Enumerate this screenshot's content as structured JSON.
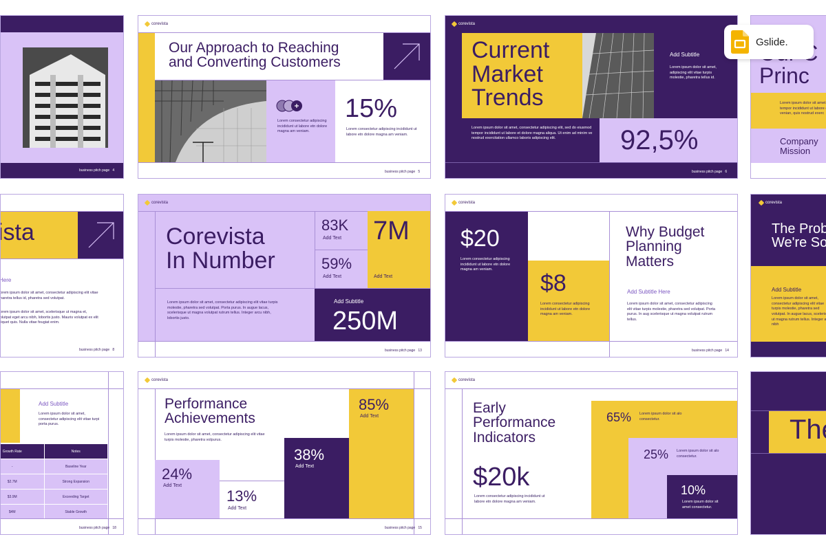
{
  "badge": {
    "label": "Gslide."
  },
  "brand": "corevista",
  "colors": {
    "purple": "#3b1d63",
    "lilac": "#d9c2f7",
    "yellow": "#f2c938"
  },
  "s1": {
    "footer": "business pitch page",
    "page": "4"
  },
  "s2": {
    "title_l1": "Our Approach to Reaching",
    "title_l2": "and Converting Customers",
    "body": "Lorem consectetur adipiscing incididunt ut labore etn dolore magna am veniam.",
    "stat": "15%",
    "stat_body": "Lorem consectetur adipiscing incididunt ut labore etn dolore magna am veniam.",
    "footer": "business pitch page",
    "page": "5"
  },
  "s3": {
    "title_l1": "Current",
    "title_l2": "Market",
    "title_l3": "Trends",
    "subtitle": "Add Subtitle",
    "sub_body": "Lorem ipsum dolor sit amet, adipiscing elit vitae turpis molestie, pharetra tellus id.",
    "body": "Lorem ipsum dolor sit amet, consectetur adipiscing elit, sed do eiusmod tempor incididunt ut labore et dolore magna aliqua. Ut enim ad minim ve nostrud exercitation ullamco laboris adipiscing elit.",
    "stat": "92,5%",
    "footer": "business pitch page",
    "page": "6"
  },
  "s4": {
    "title_l1": "Our C",
    "title_l2": "Princ",
    "body": "Lorem ipsum dolor sit amet, tempor incididunt ut labore et venian, quis nostrud exerc",
    "mission_l1": "Company",
    "mission_l2": "Mission"
  },
  "s5": {
    "title": "ista",
    "sub": "Here",
    "body1": "Lorem ipsum dolor sit amet, consectetur adipiscing elit vitae pharetra tellus id, pharetra sed volutpat.",
    "body2": "Lorem ipsum dolor sit amet, scelerisque ut magna et, volutpat eget arcu nibh, lobortis justo. Mauris volutpat ex elit aliquet quis. Nulla vitae feugiat enim.",
    "footer": "business pitch page",
    "page": "8"
  },
  "s6": {
    "title_l1": "Corevista",
    "title_l2": "In Number",
    "stat1": "83K",
    "stat1_label": "Add Text",
    "stat2": "59%",
    "stat2_label": "Add Text",
    "stat3": "7M",
    "stat3_label": "Add Text",
    "body": "Lorem ipsum dolor sit amet, consectetur adipiscing elit vitae turpis molestie, pharetra sed volutpat. Porta purus. In augue lacus, scelerisque ut magna volutpat rutrum tellus. Integer arcu nibh, lobortis justo.",
    "subtitle": "Add Subtitle",
    "stat4": "250M",
    "footer": "business pitch page",
    "page": "13"
  },
  "s7": {
    "stat1": "$20",
    "stat1_body": "Lorem consectetur adipiscing incididunt ut labore etn dolore magna am veniam.",
    "stat2": "$8",
    "stat2_body": "Lorem consectetur adipiscing incididunt ut labore etn dolore magna am veniam.",
    "title_l1": "Why Budget",
    "title_l2": "Planning",
    "title_l3": "Matters",
    "subtitle": "Add Subtitle Here",
    "body": "Lorem ipsum dolor sit amet, consectetur adipiscing elit vitae turpis molestie, pharetra sed volutpat. Porta purus. In aug scelerisque ut magna volutpat rutrum tellus.",
    "footer": "business pitch page",
    "page": "14"
  },
  "s8": {
    "title_l1": "The Prob",
    "title_l2": "We're So",
    "subtitle": "Add Subtitle",
    "body": "Lorem ipsum dolor sit amet, consectetur adipiscing elit vitae turpis molestie, pharetra sed volutpat. In augue lacus, scelerisque ut magna rutrum tellus. Integer arcu nibh"
  },
  "s9": {
    "subtitle": "Add Subtitle",
    "body": "Lorem ipsum dolor sit amet, consectetur adipiscing elit vitae turpi porta purus.",
    "columns": [
      "Growth Rate",
      "Notes"
    ],
    "rows": [
      [
        "-",
        "Baseline Year"
      ],
      [
        "$2.7M",
        "Strong Expansion"
      ],
      [
        "$3.9M",
        "Exceeding Target"
      ],
      [
        "$4M",
        "Stable Growth"
      ]
    ],
    "footer": "business pitch page",
    "page": "18"
  },
  "s10": {
    "title_l1": "Performance",
    "title_l2": "Achievements",
    "body": "Lorem ipsum dolor sit amet, consectetur adipiscing elit vitae turpis molestie, pharetra volpurus.",
    "stat1": "24%",
    "stat1_label": "Add Text",
    "stat2": "13%",
    "stat2_label": "Add Text",
    "stat3": "38%",
    "stat3_label": "Add Text",
    "stat4": "85%",
    "stat4_label": "Add Text",
    "footer": "business pitch page",
    "page": "15"
  },
  "s11": {
    "title_l1": "Early",
    "title_l2": "Performance",
    "title_l3": "Indicators",
    "stat": "$20k",
    "body": "Lorem consectetur adipiscing incididunt ut labore etn dolore magna am veniam.",
    "p1": "65%",
    "p1_body": "Lorem ipsum dolor sit alo consectetur.",
    "p2": "25%",
    "p2_body": "Lorem ipsum dolor sit alo consectetur.",
    "p3": "10%",
    "p3_body": "Lorem ipsum dolor sit amet consectetur."
  },
  "s12": {
    "title": "The"
  }
}
